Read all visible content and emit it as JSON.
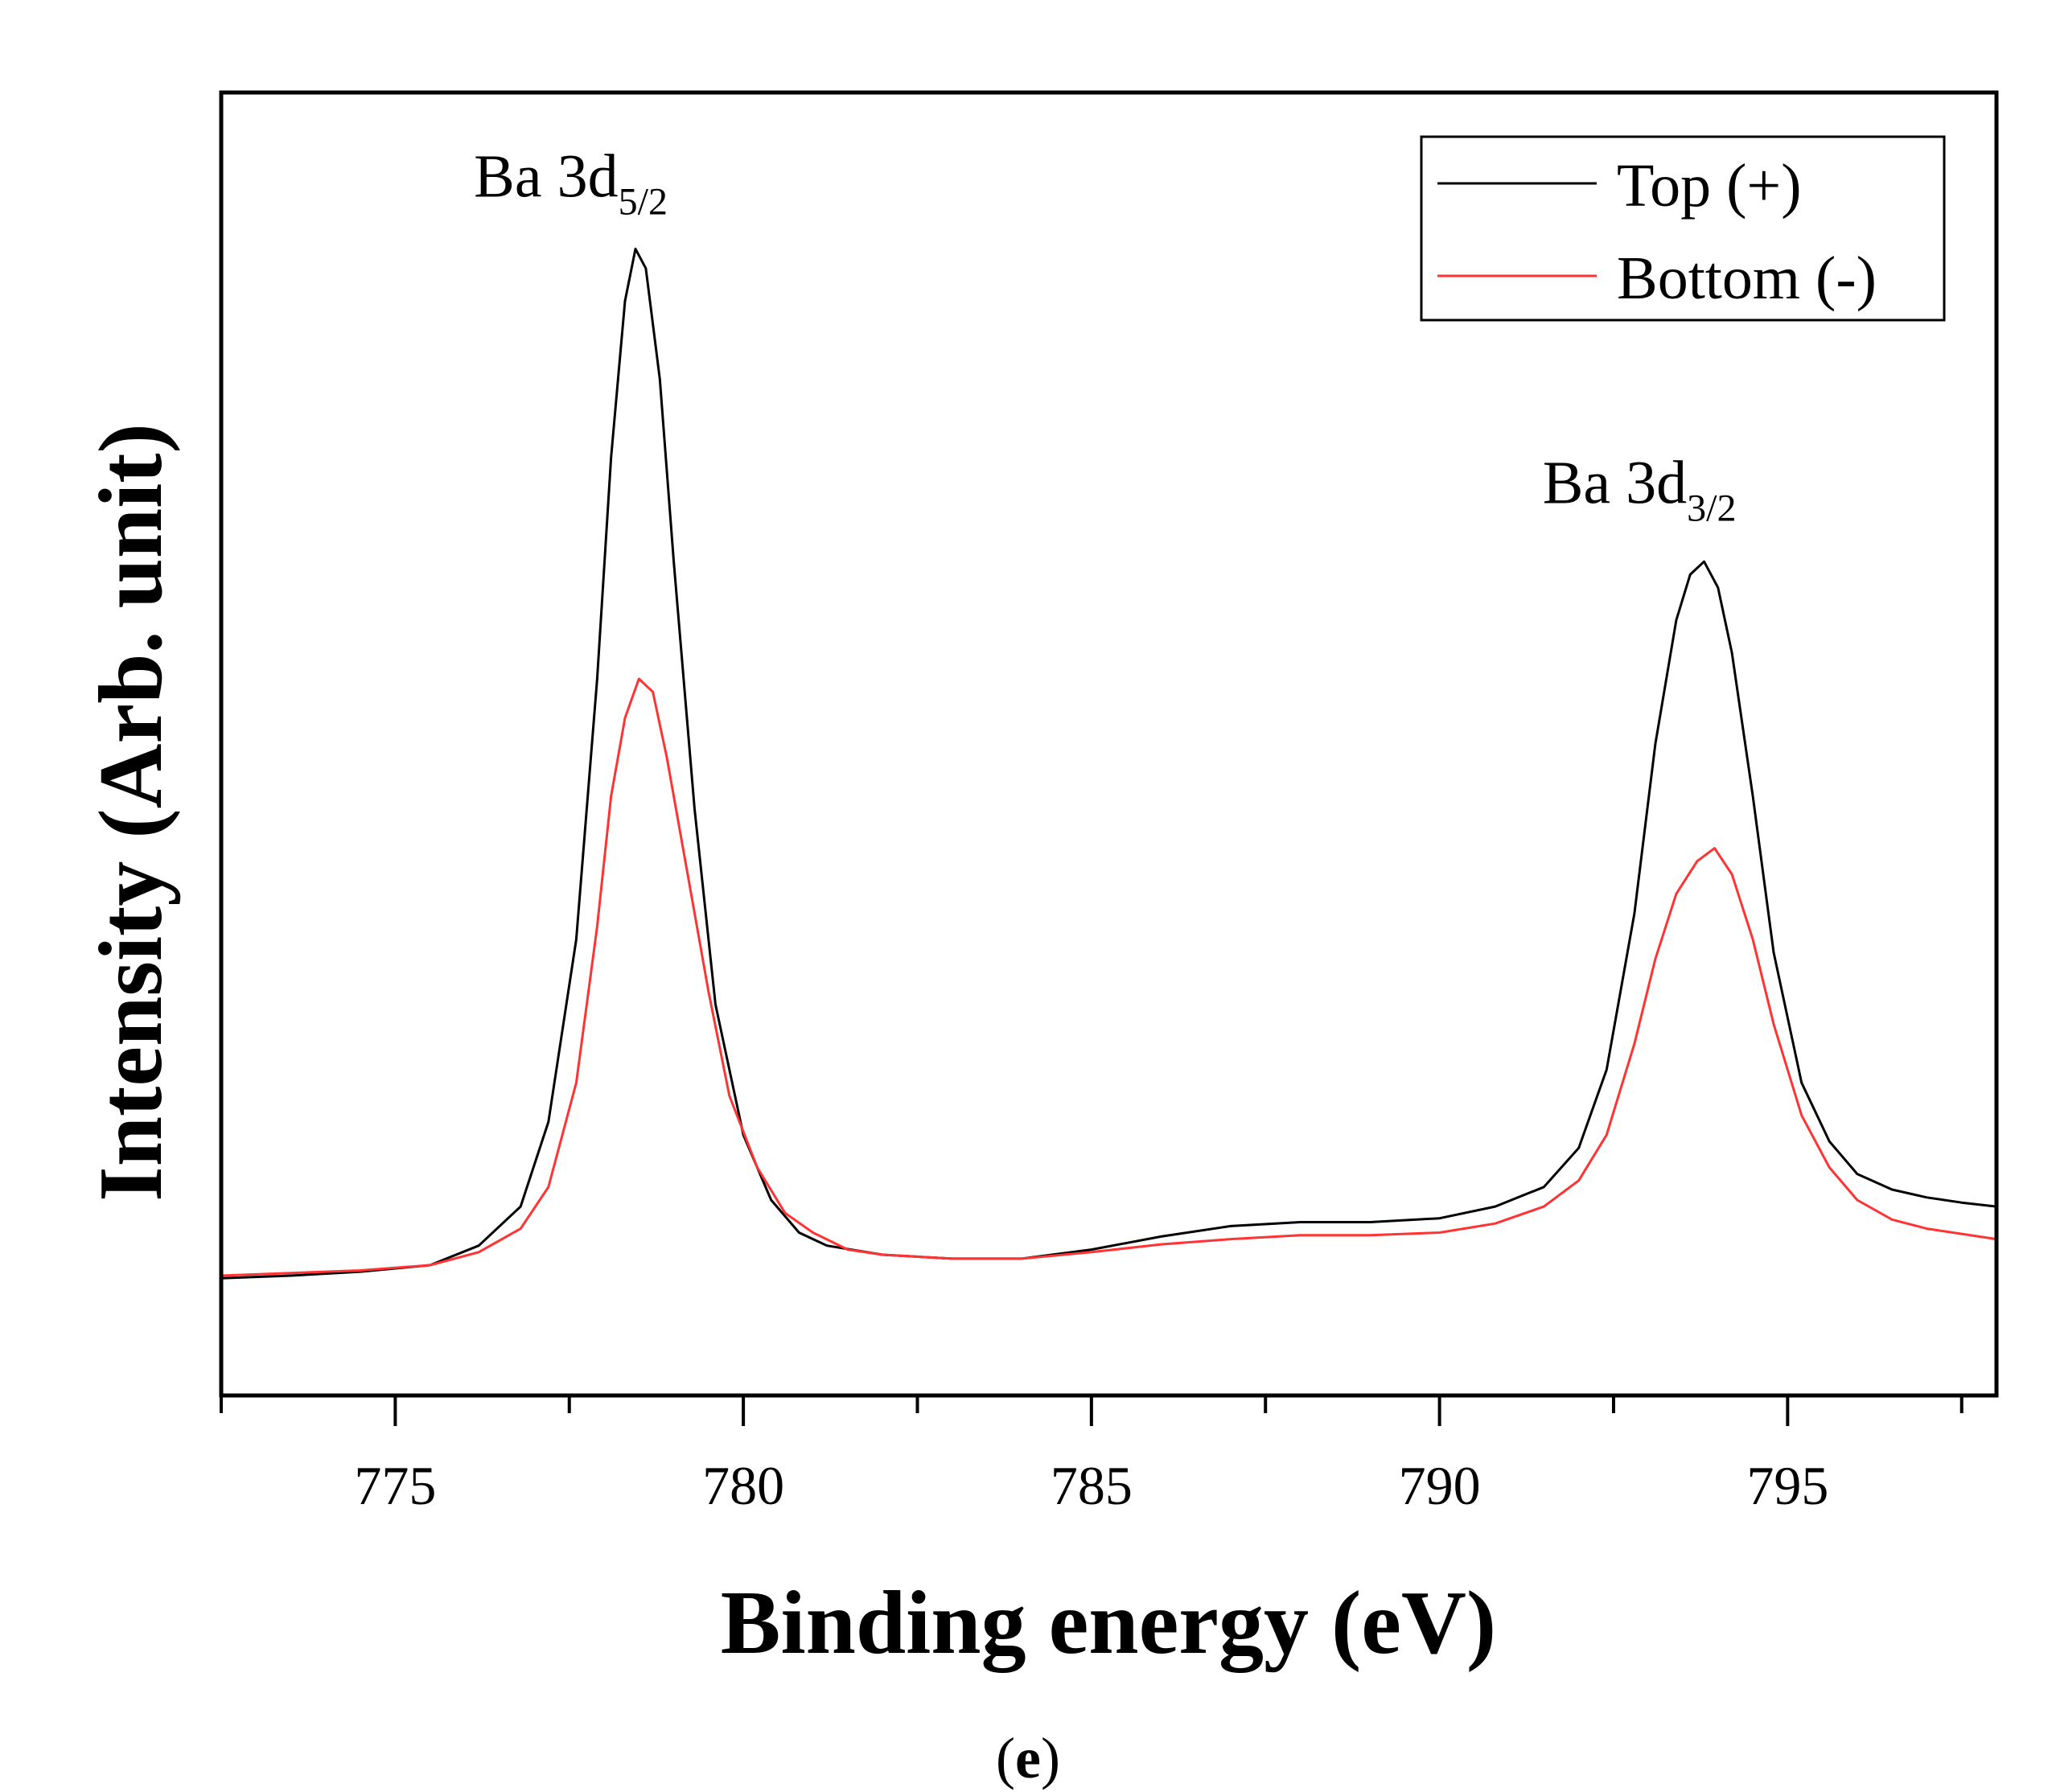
{
  "chart_data": {
    "type": "line",
    "title": "",
    "xlabel": "Binding energy (eV)",
    "ylabel": "Intensity (Arb. unit)",
    "xlim": [
      772.5,
      798
    ],
    "ylim": [
      0,
      100
    ],
    "y_ticks_shown": false,
    "x_ticks": [
      775,
      780,
      785,
      790,
      795
    ],
    "x_tick_labels": [
      "775",
      "780",
      "785",
      "790",
      "795"
    ],
    "grid": false,
    "legend_position": "top-right",
    "series": [
      {
        "name": "Top (+)",
        "color": "#000000",
        "x": [
          772.5,
          773.5,
          774.5,
          775.5,
          776.2,
          776.8,
          777.2,
          777.6,
          777.9,
          778.1,
          778.3,
          778.45,
          778.6,
          778.8,
          779.0,
          779.3,
          779.6,
          780.0,
          780.4,
          780.8,
          781.2,
          782.0,
          783.0,
          784.0,
          785.0,
          786.0,
          787.0,
          788.0,
          789.0,
          790.0,
          790.8,
          791.5,
          792.0,
          792.4,
          792.8,
          793.1,
          793.4,
          793.6,
          793.8,
          794.0,
          794.2,
          794.5,
          794.8,
          795.2,
          795.6,
          796.0,
          796.5,
          797.0,
          797.5,
          798.0
        ],
        "values": [
          9.0,
          9.2,
          9.5,
          10.0,
          11.5,
          14.5,
          21.0,
          35.0,
          55.0,
          72.0,
          84.0,
          88.0,
          86.5,
          78.0,
          64.0,
          45.0,
          30.0,
          20.0,
          15.0,
          12.5,
          11.5,
          10.8,
          10.5,
          10.5,
          11.2,
          12.2,
          13.0,
          13.3,
          13.3,
          13.6,
          14.5,
          16.0,
          19.0,
          25.0,
          37.0,
          50.0,
          59.5,
          63.0,
          64.0,
          62.0,
          57.0,
          46.0,
          34.0,
          24.0,
          19.5,
          17.0,
          15.8,
          15.2,
          14.8,
          14.5
        ]
      },
      {
        "name": "Bottom (-)",
        "color": "#ff3333",
        "x": [
          772.5,
          773.5,
          774.5,
          775.5,
          776.2,
          776.8,
          777.2,
          777.6,
          777.9,
          778.1,
          778.3,
          778.5,
          778.7,
          778.9,
          779.2,
          779.5,
          779.8,
          780.2,
          780.6,
          781.0,
          781.5,
          782.0,
          783.0,
          784.0,
          785.0,
          786.0,
          787.0,
          788.0,
          789.0,
          790.0,
          790.8,
          791.5,
          792.0,
          792.4,
          792.8,
          793.1,
          793.4,
          793.7,
          793.95,
          794.2,
          794.5,
          794.8,
          795.2,
          795.6,
          796.0,
          796.5,
          797.0,
          797.5,
          798.0
        ],
        "values": [
          9.2,
          9.4,
          9.6,
          10.0,
          11.0,
          12.8,
          16.0,
          24.0,
          36.0,
          46.0,
          52.0,
          55.0,
          54.0,
          49.0,
          40.0,
          31.0,
          23.0,
          17.5,
          14.0,
          12.5,
          11.2,
          10.8,
          10.5,
          10.5,
          11.0,
          11.6,
          12.0,
          12.3,
          12.3,
          12.5,
          13.2,
          14.5,
          16.5,
          20.0,
          27.0,
          33.5,
          38.5,
          41.0,
          42.0,
          40.0,
          35.0,
          28.5,
          21.5,
          17.5,
          15.0,
          13.5,
          12.8,
          12.4,
          12.0
        ]
      }
    ],
    "annotations": [
      {
        "text": "Ba 3d",
        "sub": "5/2",
        "x": 778.45,
        "y": 92
      },
      {
        "text": "Ba 3d",
        "sub": "3/2",
        "x": 793.8,
        "y": 68.5
      }
    ]
  },
  "caption": {
    "open": "(",
    "label": "e",
    "close": ")"
  }
}
